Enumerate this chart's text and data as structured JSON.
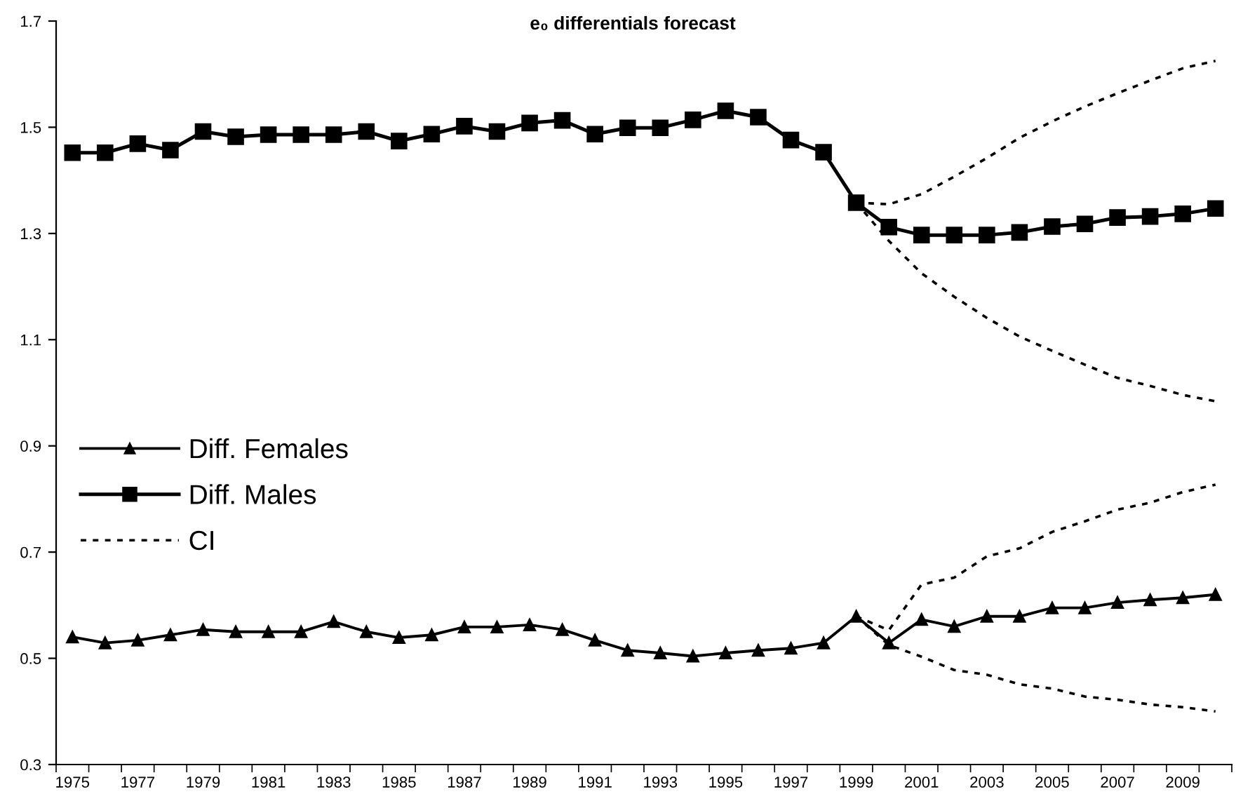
{
  "chart_data": {
    "type": "line",
    "title": "e₀ differentials forecast",
    "categories": [
      "1975",
      null,
      "1977",
      null,
      "1979",
      null,
      "1981",
      null,
      "1983",
      null,
      "1985",
      null,
      "1987",
      null,
      "1989",
      null,
      "1991",
      null,
      "1993",
      null,
      "1995",
      null,
      "1997",
      null,
      "1999",
      null,
      "2001",
      null,
      "2003",
      null,
      "2005",
      null,
      "2007",
      null,
      "2009",
      null
    ],
    "ylim": [
      0.3,
      1.7
    ],
    "yticks": [
      0.3,
      0.5,
      0.7,
      0.9,
      1.1,
      1.3,
      1.5,
      1.7
    ],
    "legend": "left",
    "series": [
      {
        "name": "Diff. Females",
        "color": "#000000",
        "marker": "triangle",
        "line_style": "solid",
        "values": [
          0.54,
          0.529,
          0.534,
          0.544,
          0.554,
          0.55,
          0.55,
          0.55,
          0.569,
          0.55,
          0.539,
          0.544,
          0.559,
          0.559,
          0.563,
          0.554,
          0.534,
          0.515,
          0.51,
          0.504,
          0.51,
          0.515,
          0.519,
          0.529,
          0.579,
          0.529,
          0.573,
          0.56,
          0.579,
          0.579,
          0.595,
          0.595,
          0.605,
          0.61,
          0.614,
          0.62
        ]
      },
      {
        "name": "Diff. Males",
        "color": "#000000",
        "marker": "square",
        "line_style": "solid",
        "values": [
          1.452,
          1.452,
          1.469,
          1.457,
          1.492,
          1.482,
          1.486,
          1.486,
          1.486,
          1.492,
          1.474,
          1.487,
          1.502,
          1.492,
          1.508,
          1.513,
          1.487,
          1.499,
          1.499,
          1.514,
          1.531,
          1.519,
          1.476,
          1.453,
          1.358,
          1.312,
          1.297,
          1.297,
          1.297,
          1.302,
          1.313,
          1.318,
          1.33,
          1.332,
          1.337,
          1.347
        ]
      },
      {
        "name": "CI",
        "color": "#000000",
        "marker": "none",
        "line_style": "dotted",
        "values": [
          null,
          null,
          null,
          null,
          null,
          null,
          null,
          null,
          null,
          null,
          null,
          null,
          null,
          null,
          null,
          null,
          null,
          null,
          null,
          null,
          null,
          null,
          null,
          null,
          1.358,
          1.355,
          1.374,
          1.407,
          1.442,
          1.48,
          1.511,
          1.539,
          1.564,
          1.588,
          1.611,
          1.625
        ]
      },
      {
        "color": "#000000",
        "marker": "none",
        "line_style": "dotted",
        "values": [
          null,
          null,
          null,
          null,
          null,
          null,
          null,
          null,
          null,
          null,
          null,
          null,
          null,
          null,
          null,
          null,
          null,
          null,
          null,
          null,
          null,
          null,
          null,
          null,
          1.358,
          1.286,
          1.225,
          1.181,
          1.141,
          1.106,
          1.079,
          1.053,
          1.028,
          1.013,
          0.996,
          0.984
        ]
      },
      {
        "color": "#000000",
        "marker": "none",
        "line_style": "dotted",
        "values": [
          null,
          null,
          null,
          null,
          null,
          null,
          null,
          null,
          null,
          null,
          null,
          null,
          null,
          null,
          null,
          null,
          null,
          null,
          null,
          null,
          null,
          null,
          null,
          null,
          0.579,
          0.553,
          0.639,
          0.652,
          0.692,
          0.707,
          0.738,
          0.758,
          0.78,
          0.793,
          0.813,
          0.827
        ]
      },
      {
        "color": "#000000",
        "marker": "none",
        "line_style": "dotted",
        "values": [
          null,
          null,
          null,
          null,
          null,
          null,
          null,
          null,
          null,
          null,
          null,
          null,
          null,
          null,
          null,
          null,
          null,
          null,
          null,
          null,
          null,
          null,
          null,
          null,
          0.579,
          0.525,
          0.503,
          0.478,
          0.469,
          0.451,
          0.443,
          0.428,
          0.422,
          0.413,
          0.408,
          0.4
        ]
      }
    ]
  }
}
